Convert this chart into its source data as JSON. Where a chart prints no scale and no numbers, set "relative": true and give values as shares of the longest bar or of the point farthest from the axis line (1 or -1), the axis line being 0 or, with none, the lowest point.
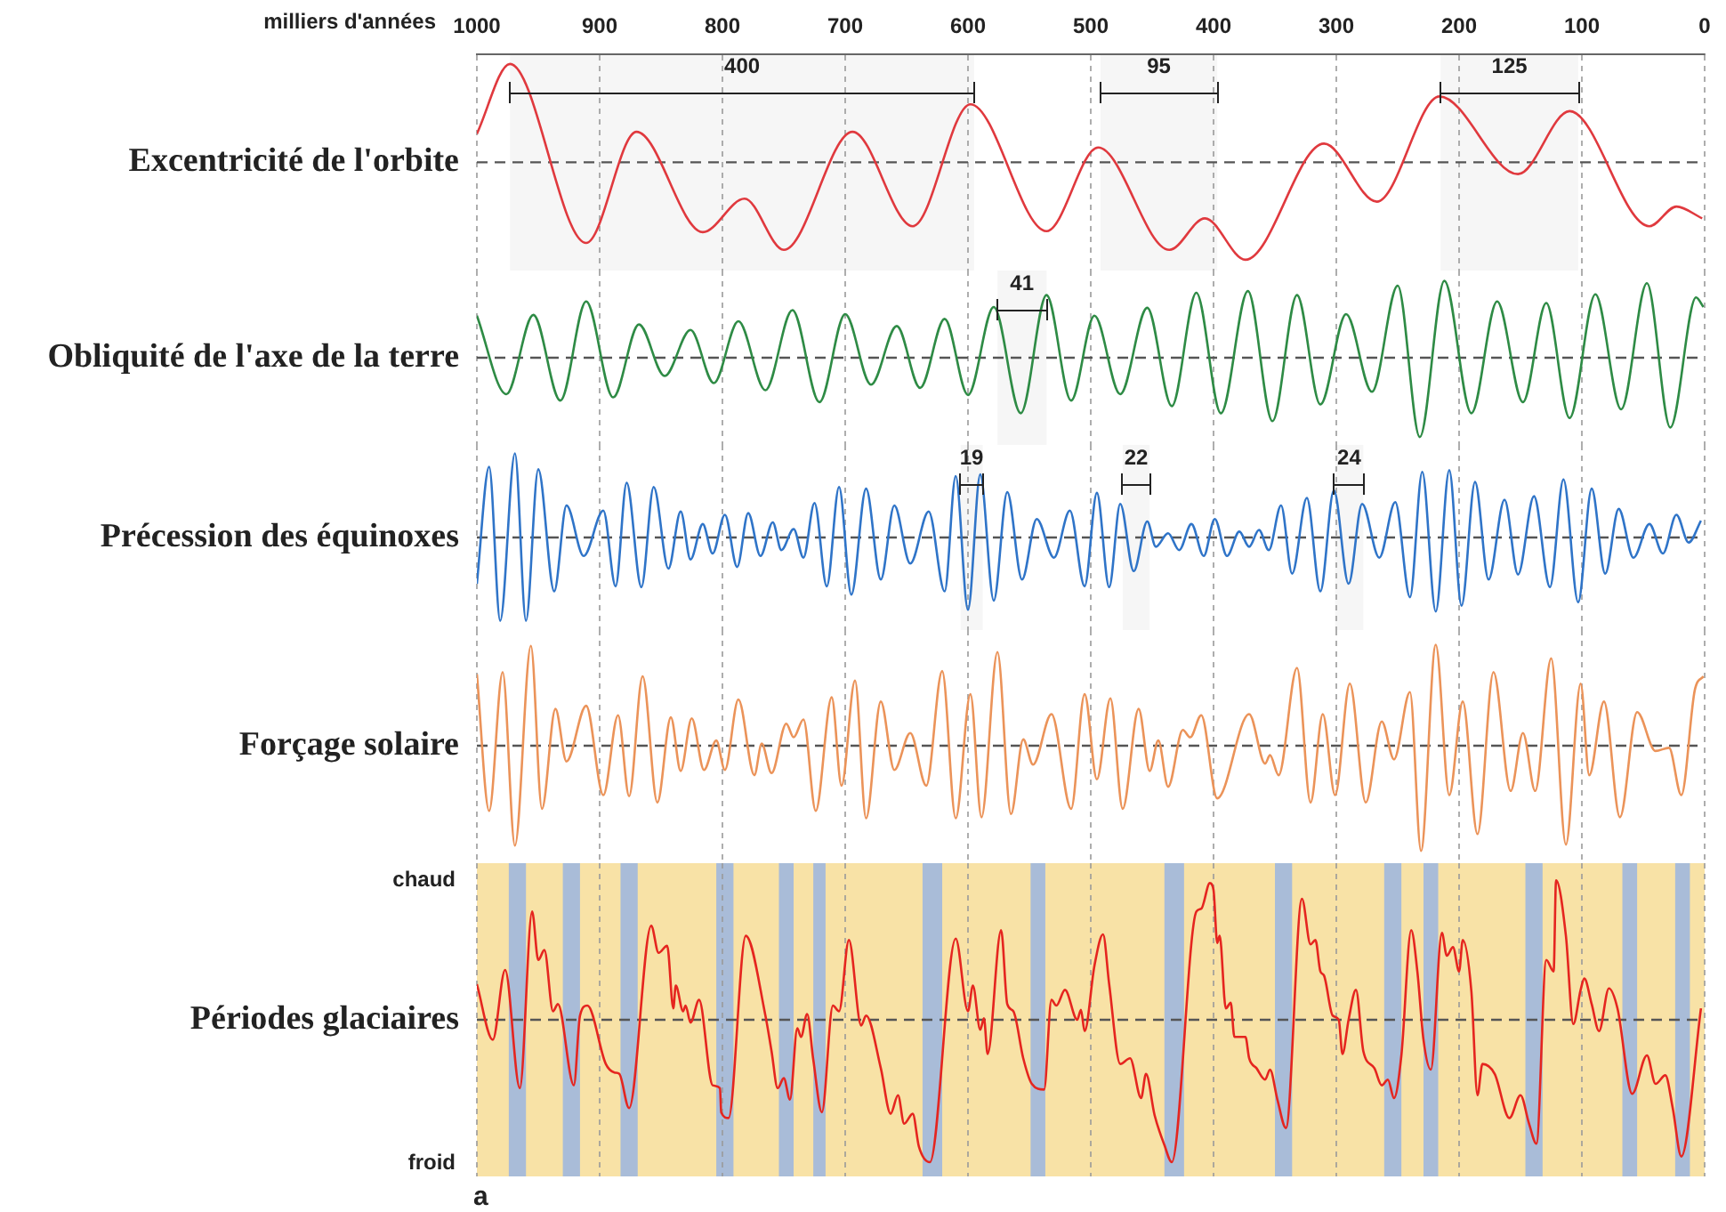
{
  "chart_data": [
    {
      "type": "line",
      "ylabel": "Excentricité de l'orbite",
      "xlabel": "milliers d'années",
      "relative": true,
      "xlim": [
        1000,
        0
      ],
      "xticks": [
        1000,
        900,
        800,
        700,
        600,
        500,
        400,
        300,
        200,
        100,
        0
      ],
      "tick_labels": "x",
      "grid": "x",
      "x": [
        1000,
        973,
        911,
        870,
        816,
        782,
        750,
        694,
        645,
        598,
        536,
        494,
        436,
        407,
        374,
        310,
        267,
        216,
        152,
        110,
        45,
        23,
        2
      ],
      "series": [
        {
          "color": "#e0393e",
          "values": [
            0.29,
            1.0,
            -0.82,
            0.31,
            -0.71,
            -0.37,
            -0.89,
            0.31,
            -0.65,
            0.59,
            -0.7,
            0.15,
            -0.89,
            -0.57,
            -0.99,
            0.19,
            -0.4,
            0.67,
            -0.12,
            0.52,
            -0.65,
            -0.45,
            -0.57
          ]
        }
      ],
      "ref_lines": [
        {
          "axis": "y",
          "value": 0,
          "line_style": "dashed",
          "color": "#555555"
        }
      ],
      "bands": [
        {
          "axis": "x",
          "from": 973,
          "to": 595,
          "label": "400",
          "color": "#f6f6f6"
        },
        {
          "axis": "x",
          "from": 492,
          "to": 397,
          "label": "95",
          "color": "#f6f6f6"
        },
        {
          "axis": "x",
          "from": 215,
          "to": 103,
          "label": "125",
          "color": "#f6f6f6"
        }
      ]
    },
    {
      "type": "line",
      "ylabel": "Obliquité de l'axe de la terre",
      "relative": true,
      "xlim": [
        1000,
        0
      ],
      "xticks": [
        1000,
        900,
        800,
        700,
        600,
        500,
        400,
        300,
        200,
        100,
        0
      ],
      "tick_labels": false,
      "grid": "x",
      "x": [
        1000,
        976,
        954,
        932,
        911,
        889,
        868,
        847,
        826,
        807,
        787,
        765,
        743,
        721,
        700,
        679,
        658,
        639,
        619,
        600,
        579,
        557,
        536,
        516,
        497,
        476,
        454,
        434,
        414,
        394,
        372,
        352,
        332,
        313,
        292,
        271,
        250,
        232,
        212,
        190,
        169,
        148,
        129,
        110,
        89,
        68,
        47,
        28,
        7,
        1
      ],
      "series": [
        {
          "color": "#2e8b45",
          "values": [
            0.53,
            -0.46,
            0.54,
            -0.54,
            0.71,
            -0.5,
            0.42,
            -0.23,
            0.35,
            -0.32,
            0.46,
            -0.41,
            0.6,
            -0.56,
            0.55,
            -0.34,
            0.4,
            -0.38,
            0.49,
            -0.47,
            0.64,
            -0.7,
            0.79,
            -0.54,
            0.53,
            -0.46,
            0.63,
            -0.61,
            0.82,
            -0.7,
            0.84,
            -0.8,
            0.79,
            -0.59,
            0.55,
            -0.43,
            0.91,
            -1.0,
            0.97,
            -0.7,
            0.71,
            -0.56,
            0.69,
            -0.76,
            0.8,
            -0.65,
            0.94,
            -0.88,
            0.76,
            0.64
          ]
        }
      ],
      "ref_lines": [
        {
          "axis": "y",
          "value": 0,
          "line_style": "dashed",
          "color": "#555555"
        }
      ],
      "bands": [
        {
          "axis": "x",
          "from": 576,
          "to": 536,
          "label": "41",
          "color": "#f6f6f6"
        }
      ]
    },
    {
      "type": "line",
      "ylabel": "Précession des équinoxes",
      "relative": true,
      "xlim": [
        1000,
        0
      ],
      "xticks": [
        1000,
        900,
        800,
        700,
        600,
        500,
        400,
        300,
        200,
        100,
        0
      ],
      "tick_labels": false,
      "grid": "x",
      "x": [
        1000,
        990,
        981,
        969,
        960,
        950,
        937,
        927,
        913,
        897,
        887,
        878,
        866,
        856,
        844,
        834,
        826,
        816,
        808,
        798,
        788,
        779,
        769,
        759,
        752,
        742,
        734,
        725,
        715,
        705,
        695,
        683,
        671,
        660,
        647,
        632,
        619,
        610,
        600,
        590,
        579,
        568,
        556,
        544,
        530,
        517,
        505,
        495,
        485,
        476,
        465,
        454,
        447,
        437,
        428,
        418,
        408,
        399,
        389,
        379,
        371,
        363,
        355,
        345,
        336,
        324,
        313,
        302,
        290,
        279,
        265,
        252,
        240,
        230,
        219,
        208,
        198,
        187,
        176,
        163,
        152,
        139,
        126,
        115,
        103,
        92,
        81,
        70,
        58,
        45,
        34,
        23,
        13,
        3
      ],
      "series": [
        {
          "color": "#2f74c8",
          "values": [
            -0.55,
            0.84,
            -0.99,
            1.0,
            -0.99,
            0.81,
            -0.64,
            0.38,
            -0.22,
            0.32,
            -0.58,
            0.65,
            -0.59,
            0.6,
            -0.37,
            0.31,
            -0.26,
            0.16,
            -0.19,
            0.27,
            -0.35,
            0.29,
            -0.22,
            0.18,
            -0.15,
            0.1,
            -0.24,
            0.41,
            -0.58,
            0.6,
            -0.68,
            0.58,
            -0.5,
            0.38,
            -0.31,
            0.31,
            -0.64,
            0.73,
            -0.86,
            0.75,
            -0.75,
            0.54,
            -0.5,
            0.22,
            -0.24,
            0.32,
            -0.58,
            0.53,
            -0.59,
            0.4,
            -0.4,
            0.19,
            -0.11,
            0.05,
            -0.15,
            0.16,
            -0.22,
            0.22,
            -0.22,
            0.07,
            -0.11,
            0.09,
            -0.15,
            0.38,
            -0.43,
            0.47,
            -0.64,
            0.56,
            -0.55,
            0.4,
            -0.24,
            0.42,
            -0.71,
            0.78,
            -0.88,
            0.8,
            -0.81,
            0.66,
            -0.5,
            0.45,
            -0.44,
            0.49,
            -0.59,
            0.69,
            -0.77,
            0.58,
            -0.43,
            0.34,
            -0.24,
            0.16,
            -0.19,
            0.27,
            -0.06,
            0.2
          ]
        }
      ],
      "ref_lines": [
        {
          "axis": "y",
          "value": 0,
          "line_style": "dashed",
          "color": "#555555"
        }
      ],
      "bands": [
        {
          "axis": "x",
          "from": 606,
          "to": 588,
          "label": "19",
          "color": "#f6f6f6"
        },
        {
          "axis": "x",
          "from": 474,
          "to": 452,
          "label": "22",
          "color": "#f6f6f6"
        },
        {
          "axis": "x",
          "from": 301,
          "to": 278,
          "label": "24",
          "color": "#f6f6f6"
        }
      ]
    },
    {
      "type": "line",
      "ylabel": "Forçage solaire",
      "relative": true,
      "xlim": [
        1000,
        0
      ],
      "xticks": [
        1000,
        900,
        800,
        700,
        600,
        500,
        400,
        300,
        200,
        100,
        0
      ],
      "tick_labels": false,
      "grid": "x",
      "x": [
        1000,
        990,
        979,
        969,
        956,
        947,
        936,
        927,
        911,
        897,
        885,
        876,
        865,
        853,
        842,
        834,
        825,
        815,
        805,
        798,
        787,
        774,
        768,
        760,
        748,
        742,
        734,
        724,
        711,
        703,
        692,
        683,
        671,
        660,
        647,
        634,
        621,
        610,
        598,
        589,
        576,
        565,
        555,
        547,
        532,
        516,
        505,
        495,
        484,
        474,
        461,
        452,
        445,
        437,
        425,
        419,
        410,
        397,
        371,
        358,
        354,
        347,
        332,
        321,
        311,
        301,
        289,
        276,
        263,
        253,
        240,
        231,
        219,
        208,
        197,
        185,
        172,
        158,
        148,
        138,
        125,
        113,
        101,
        94,
        82,
        69,
        55,
        40,
        29,
        19,
        8,
        1
      ],
      "series": [
        {
          "color": "#eb9359",
          "values": [
            0.68,
            -0.62,
            0.7,
            -0.95,
            0.95,
            -0.6,
            0.35,
            -0.15,
            0.38,
            -0.47,
            0.29,
            -0.48,
            0.66,
            -0.54,
            0.27,
            -0.24,
            0.26,
            -0.23,
            0.05,
            -0.23,
            0.44,
            -0.28,
            0.02,
            -0.26,
            0.21,
            0.08,
            0.25,
            -0.62,
            0.46,
            -0.38,
            0.62,
            -0.69,
            0.42,
            -0.23,
            0.12,
            -0.38,
            0.71,
            -0.69,
            0.49,
            -0.68,
            0.89,
            -0.65,
            0.06,
            -0.18,
            0.3,
            -0.6,
            0.49,
            -0.32,
            0.45,
            -0.6,
            0.35,
            -0.24,
            0.05,
            -0.39,
            0.15,
            0.08,
            0.29,
            -0.5,
            0.3,
            -0.17,
            -0.09,
            -0.28,
            0.74,
            -0.54,
            0.3,
            -0.47,
            0.59,
            -0.54,
            0.23,
            -0.13,
            0.51,
            -1.0,
            0.96,
            -0.47,
            0.42,
            -0.84,
            0.7,
            -0.43,
            0.12,
            -0.43,
            0.83,
            -0.94,
            0.59,
            -0.28,
            0.42,
            -0.68,
            0.32,
            -0.05,
            -0.02,
            -0.47,
            0.53,
            0.66
          ]
        }
      ],
      "ref_lines": [
        {
          "axis": "y",
          "value": 0,
          "line_style": "dashed",
          "color": "#555555"
        }
      ]
    },
    {
      "type": "line",
      "ylabel": "Périodes glaciaires",
      "relative": true,
      "xlim": [
        1000,
        0
      ],
      "xticks": [
        1000,
        900,
        800,
        700,
        600,
        500,
        400,
        300,
        200,
        100,
        0
      ],
      "tick_labels": false,
      "grid": "x",
      "x": [
        1000,
        987,
        977,
        965,
        955,
        950,
        945,
        938,
        934,
        921,
        916,
        910,
        895,
        888,
        884,
        876,
        858,
        852,
        845,
        840,
        838,
        832,
        830,
        826,
        819,
        808,
        802,
        801,
        795,
        781,
        765,
        760,
        755,
        750,
        745,
        739,
        736,
        731,
        726,
        719,
        710,
        705,
        697,
        687,
        683,
        671,
        663,
        657,
        652,
        645,
        640,
        631,
        610,
        600,
        596,
        590,
        587,
        584,
        573,
        568,
        563,
        555,
        548,
        538,
        532,
        528,
        521,
        511,
        508,
        505,
        497,
        490,
        485,
        476,
        468,
        459,
        455,
        448,
        440,
        434,
        414,
        410,
        403,
        400,
        397,
        395,
        390,
        386,
        383,
        374,
        371,
        365,
        358,
        354,
        348,
        341,
        328,
        321,
        317,
        313,
        310,
        303,
        298,
        295,
        290,
        284,
        278,
        269,
        263,
        258,
        253,
        247,
        239,
        234,
        229,
        223,
        214,
        210,
        205,
        200,
        197,
        190,
        185,
        181,
        171,
        159,
        150,
        143,
        137,
        129,
        123,
        121,
        113,
        107,
        101,
        98,
        92,
        86,
        78,
        71,
        59,
        47,
        40,
        32,
        26,
        19,
        3
      ],
      "series": [
        {
          "color": "#e5251f",
          "values": [
            0.25,
            -0.14,
            0.35,
            -0.48,
            0.76,
            0.42,
            0.49,
            0.06,
            0.11,
            -0.46,
            0.03,
            0.1,
            -0.31,
            -0.37,
            -0.38,
            -0.62,
            0.66,
            0.47,
            0.52,
            0.08,
            0.24,
            0.06,
            0.1,
            -0.02,
            0.14,
            -0.46,
            -0.48,
            -0.65,
            -0.69,
            0.59,
            0.03,
            -0.22,
            -0.48,
            -0.41,
            -0.56,
            -0.06,
            -0.12,
            0.04,
            -0.28,
            -0.65,
            0.1,
            0.06,
            0.56,
            -0.04,
            0.03,
            -0.34,
            -0.66,
            -0.53,
            -0.73,
            -0.66,
            -0.89,
            -1.0,
            0.57,
            0.06,
            0.24,
            -0.07,
            0.01,
            -0.24,
            0.63,
            0.11,
            0.06,
            -0.27,
            -0.45,
            -0.49,
            0.14,
            0.1,
            0.21,
            0.0,
            0.07,
            -0.08,
            0.38,
            0.6,
            0.25,
            -0.31,
            -0.27,
            -0.55,
            -0.38,
            -0.67,
            -0.88,
            -1.0,
            0.76,
            0.78,
            0.96,
            0.91,
            0.54,
            0.59,
            0.08,
            0.12,
            -0.12,
            -0.12,
            -0.27,
            -0.34,
            -0.42,
            -0.35,
            -0.56,
            -0.76,
            0.85,
            0.53,
            0.56,
            0.34,
            0.31,
            0.03,
            0.0,
            -0.24,
            0.0,
            0.21,
            -0.22,
            -0.34,
            -0.46,
            -0.42,
            -0.55,
            -0.25,
            0.63,
            0.34,
            -0.14,
            -0.35,
            0.61,
            0.45,
            0.51,
            0.34,
            0.56,
            0.2,
            -0.53,
            -0.31,
            -0.38,
            -0.69,
            -0.53,
            -0.73,
            -0.87,
            0.42,
            0.34,
            0.98,
            0.59,
            -0.03,
            0.21,
            0.29,
            0.11,
            -0.08,
            0.22,
            0.08,
            -0.52,
            -0.25,
            -0.45,
            -0.39,
            -0.62,
            -0.96,
            0.08
          ]
        }
      ],
      "ref_lines": [
        {
          "axis": "y",
          "value": 0,
          "line_style": "dashed",
          "color": "#555555"
        }
      ],
      "bands": [
        {
          "axis": "x",
          "from": 1000,
          "to": 0,
          "color": "#f8e2a6"
        },
        {
          "axis": "x",
          "from": 974,
          "to": 960,
          "color": "#a9bcd8"
        },
        {
          "axis": "x",
          "from": 930,
          "to": 916,
          "color": "#a9bcd8"
        },
        {
          "axis": "x",
          "from": 883,
          "to": 869,
          "color": "#a9bcd8"
        },
        {
          "axis": "x",
          "from": 805,
          "to": 791,
          "color": "#a9bcd8"
        },
        {
          "axis": "x",
          "from": 754,
          "to": 742,
          "color": "#a9bcd8"
        },
        {
          "axis": "x",
          "from": 726,
          "to": 716,
          "color": "#a9bcd8"
        },
        {
          "axis": "x",
          "from": 637,
          "to": 621,
          "color": "#a9bcd8"
        },
        {
          "axis": "x",
          "from": 549,
          "to": 537,
          "color": "#a9bcd8"
        },
        {
          "axis": "x",
          "from": 440,
          "to": 424,
          "color": "#a9bcd8"
        },
        {
          "axis": "x",
          "from": 350,
          "to": 336,
          "color": "#a9bcd8"
        },
        {
          "axis": "x",
          "from": 261,
          "to": 247,
          "color": "#a9bcd8"
        },
        {
          "axis": "x",
          "from": 229,
          "to": 217,
          "color": "#a9bcd8"
        },
        {
          "axis": "x",
          "from": 146,
          "to": 132,
          "color": "#a9bcd8"
        },
        {
          "axis": "x",
          "from": 67,
          "to": 55,
          "color": "#a9bcd8"
        },
        {
          "axis": "x",
          "from": 24,
          "to": 12,
          "color": "#a9bcd8"
        }
      ],
      "annotations": [
        "chaud",
        "froid",
        "a"
      ]
    }
  ]
}
